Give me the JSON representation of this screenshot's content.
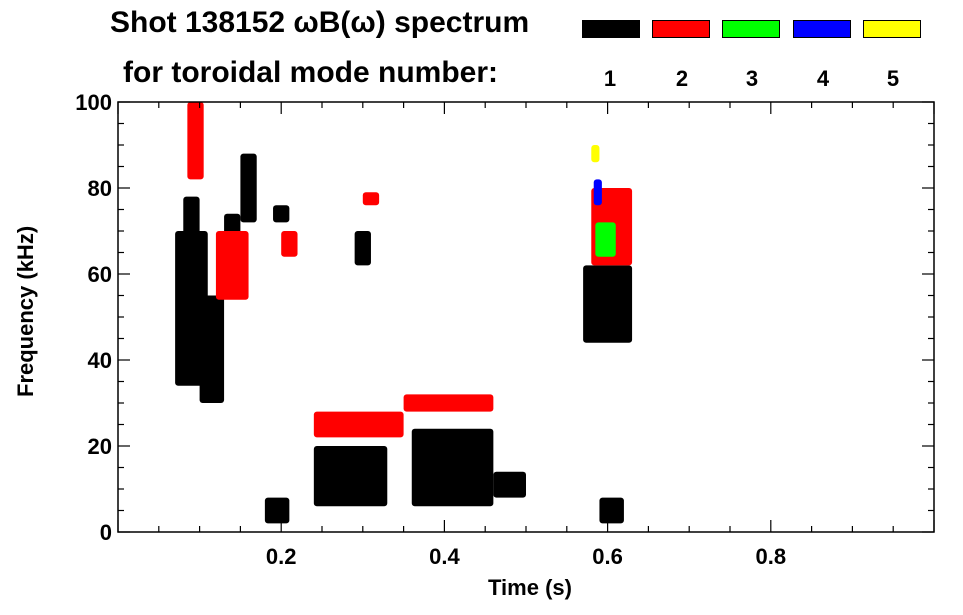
{
  "chart_data": {
    "type": "heatmap",
    "title_line1": "Shot 138152 ωB(ω) spectrum",
    "title_line2": "for toroidal mode number:",
    "xlabel": "Time (s)",
    "ylabel": "Frequency (kHz)",
    "xlim": [
      0,
      1.0
    ],
    "ylim": [
      0,
      100
    ],
    "x_ticks": [
      0.2,
      0.4,
      0.6,
      0.8
    ],
    "x_tick_labels": [
      "0.2",
      "0.4",
      "0.6",
      "0.8"
    ],
    "y_ticks": [
      0,
      20,
      40,
      60,
      80,
      100
    ],
    "y_tick_labels": [
      "0",
      "20",
      "40",
      "60",
      "80",
      "100"
    ],
    "legend": [
      {
        "mode": "1",
        "color": "#000000"
      },
      {
        "mode": "2",
        "color": "#ff0000"
      },
      {
        "mode": "3",
        "color": "#00ff00"
      },
      {
        "mode": "4",
        "color": "#0000ff"
      },
      {
        "mode": "5",
        "color": "#ffff00"
      }
    ],
    "regions": [
      {
        "mode": 1,
        "t": [
          0.07,
          0.11
        ],
        "f": [
          34,
          70
        ]
      },
      {
        "mode": 1,
        "t": [
          0.08,
          0.1
        ],
        "f": [
          62,
          78
        ]
      },
      {
        "mode": 1,
        "t": [
          0.1,
          0.13
        ],
        "f": [
          30,
          55
        ]
      },
      {
        "mode": 1,
        "t": [
          0.15,
          0.17
        ],
        "f": [
          72,
          88
        ]
      },
      {
        "mode": 1,
        "t": [
          0.13,
          0.15
        ],
        "f": [
          64,
          74
        ]
      },
      {
        "mode": 1,
        "t": [
          0.19,
          0.21
        ],
        "f": [
          72,
          76
        ]
      },
      {
        "mode": 1,
        "t": [
          0.18,
          0.21
        ],
        "f": [
          2,
          8
        ]
      },
      {
        "mode": 1,
        "t": [
          0.24,
          0.33
        ],
        "f": [
          6,
          20
        ]
      },
      {
        "mode": 1,
        "t": [
          0.29,
          0.31
        ],
        "f": [
          62,
          70
        ]
      },
      {
        "mode": 1,
        "t": [
          0.36,
          0.46
        ],
        "f": [
          6,
          24
        ]
      },
      {
        "mode": 1,
        "t": [
          0.46,
          0.5
        ],
        "f": [
          8,
          14
        ]
      },
      {
        "mode": 1,
        "t": [
          0.57,
          0.63
        ],
        "f": [
          44,
          62
        ]
      },
      {
        "mode": 1,
        "t": [
          0.59,
          0.62
        ],
        "f": [
          2,
          8
        ]
      },
      {
        "mode": 2,
        "t": [
          0.085,
          0.105
        ],
        "f": [
          82,
          100
        ]
      },
      {
        "mode": 2,
        "t": [
          0.12,
          0.16
        ],
        "f": [
          54,
          70
        ]
      },
      {
        "mode": 2,
        "t": [
          0.2,
          0.22
        ],
        "f": [
          64,
          70
        ]
      },
      {
        "mode": 2,
        "t": [
          0.3,
          0.32
        ],
        "f": [
          76,
          79
        ]
      },
      {
        "mode": 2,
        "t": [
          0.24,
          0.35
        ],
        "f": [
          22,
          28
        ]
      },
      {
        "mode": 2,
        "t": [
          0.35,
          0.46
        ],
        "f": [
          28,
          32
        ]
      },
      {
        "mode": 2,
        "t": [
          0.58,
          0.63
        ],
        "f": [
          62,
          80
        ]
      },
      {
        "mode": 3,
        "t": [
          0.585,
          0.61
        ],
        "f": [
          64,
          72
        ]
      },
      {
        "mode": 4,
        "t": [
          0.583,
          0.593
        ],
        "f": [
          76,
          82
        ]
      },
      {
        "mode": 5,
        "t": [
          0.58,
          0.59
        ],
        "f": [
          86,
          90
        ]
      }
    ]
  }
}
